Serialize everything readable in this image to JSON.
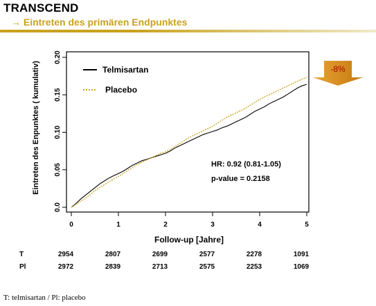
{
  "header": {
    "title": "TRANSCEND",
    "subtitle": "→ Eintreten des primären Endpunktes"
  },
  "footnote": "T: telmisartan / Pl: placebo",
  "colors": {
    "accent": "#c9a21c",
    "telmisartan": "#000000",
    "placebo": "#c9a21c",
    "arrow": "#d98a1a",
    "arrow_text": "#b00000"
  },
  "chart_data": {
    "type": "line",
    "xlabel": "Follow-up [Jahre]",
    "ylabel": "Eintreten des Enpunktes ( kumulativ)",
    "xlim": [
      0,
      5
    ],
    "ylim": [
      0,
      0.2
    ],
    "xticks": [
      0,
      1,
      2,
      3,
      4,
      5
    ],
    "yticks": [
      "0.0",
      "0.05",
      "0.10",
      "0.15",
      "0.20"
    ],
    "legend_position": "top-left",
    "series": [
      {
        "name": "Telmisartan",
        "x": [
          0,
          0.1,
          0.2,
          0.3,
          0.4,
          0.5,
          0.6,
          0.7,
          0.8,
          0.9,
          1.0,
          1.1,
          1.2,
          1.3,
          1.4,
          1.5,
          1.6,
          1.7,
          1.8,
          1.9,
          2.0,
          2.1,
          2.2,
          2.3,
          2.4,
          2.5,
          2.6,
          2.7,
          2.8,
          2.9,
          3.0,
          3.1,
          3.2,
          3.3,
          3.4,
          3.5,
          3.6,
          3.7,
          3.8,
          3.9,
          4.0,
          4.1,
          4.2,
          4.3,
          4.4,
          4.5,
          4.6,
          4.7,
          4.8,
          4.9,
          5.0
        ],
        "y": [
          0,
          0.005,
          0.011,
          0.016,
          0.021,
          0.026,
          0.031,
          0.035,
          0.039,
          0.042,
          0.045,
          0.048,
          0.052,
          0.056,
          0.059,
          0.062,
          0.064,
          0.066,
          0.068,
          0.07,
          0.072,
          0.075,
          0.079,
          0.082,
          0.085,
          0.088,
          0.091,
          0.094,
          0.097,
          0.099,
          0.101,
          0.103,
          0.106,
          0.108,
          0.111,
          0.114,
          0.117,
          0.12,
          0.124,
          0.128,
          0.131,
          0.134,
          0.138,
          0.141,
          0.144,
          0.147,
          0.151,
          0.155,
          0.159,
          0.162,
          0.164
        ]
      },
      {
        "name": "Placebo",
        "x": [
          0,
          0.1,
          0.2,
          0.3,
          0.4,
          0.5,
          0.6,
          0.7,
          0.8,
          0.9,
          1.0,
          1.1,
          1.2,
          1.3,
          1.4,
          1.5,
          1.6,
          1.7,
          1.8,
          1.9,
          2.0,
          2.1,
          2.2,
          2.3,
          2.4,
          2.5,
          2.6,
          2.7,
          2.8,
          2.9,
          3.0,
          3.1,
          3.2,
          3.3,
          3.4,
          3.5,
          3.6,
          3.7,
          3.8,
          3.9,
          4.0,
          4.1,
          4.2,
          4.3,
          4.4,
          4.5,
          4.6,
          4.7,
          4.8,
          4.9,
          5.0
        ],
        "y": [
          0,
          0.004,
          0.008,
          0.012,
          0.017,
          0.022,
          0.026,
          0.03,
          0.034,
          0.038,
          0.041,
          0.045,
          0.049,
          0.053,
          0.057,
          0.06,
          0.063,
          0.066,
          0.069,
          0.072,
          0.074,
          0.077,
          0.081,
          0.085,
          0.089,
          0.093,
          0.096,
          0.099,
          0.102,
          0.105,
          0.108,
          0.112,
          0.116,
          0.12,
          0.123,
          0.126,
          0.129,
          0.132,
          0.136,
          0.14,
          0.144,
          0.147,
          0.15,
          0.153,
          0.156,
          0.159,
          0.162,
          0.165,
          0.168,
          0.171,
          0.173
        ]
      }
    ],
    "annotations": {
      "hr": "HR: 0.92 (0.81-1.05)",
      "pvalue": "p-value = 0.2158",
      "arrow_label": "-8%"
    },
    "risk_table": {
      "rows": [
        {
          "label": "T",
          "values": [
            "2954",
            "2807",
            "2699",
            "2577",
            "2278",
            "1091"
          ]
        },
        {
          "label": "Pl",
          "values": [
            "2972",
            "2839",
            "2713",
            "2575",
            "2253",
            "1069"
          ]
        }
      ]
    }
  }
}
